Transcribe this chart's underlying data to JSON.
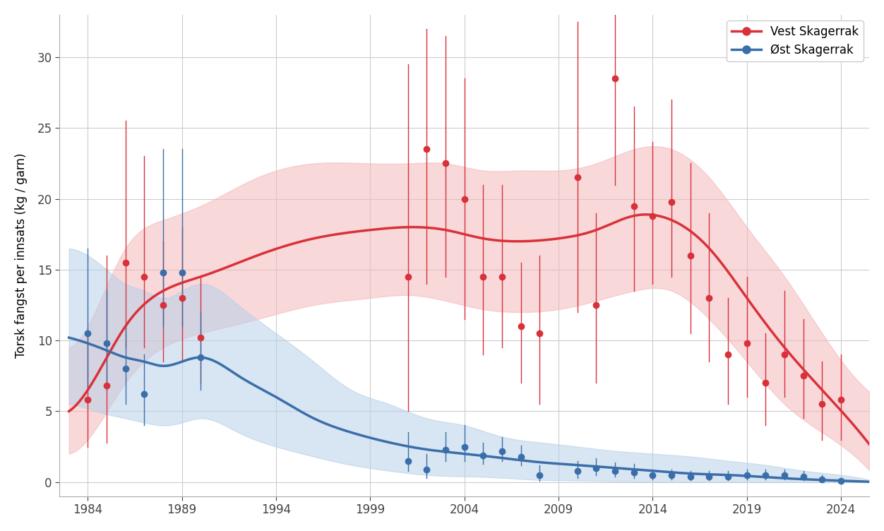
{
  "title": "",
  "ylabel": "Torsk fangst per innsats (kg / garn)",
  "xlabel": "",
  "xlim": [
    1982.5,
    2025.5
  ],
  "ylim": [
    -1,
    33
  ],
  "yticks": [
    0,
    5,
    10,
    15,
    20,
    25,
    30
  ],
  "xticks": [
    1984,
    1989,
    1994,
    1999,
    2004,
    2009,
    2014,
    2019,
    2024
  ],
  "background_color": "#ffffff",
  "grid_color": "#cccccc",
  "vest_color": "#d9313a",
  "vest_fill_color": "#f4b8bb",
  "oest_color": "#3a6eaa",
  "oest_fill_color": "#b8d0e8",
  "vest_points": [
    {
      "year": 1984,
      "val": 5.8,
      "lo": 2.5,
      "hi": 10.5
    },
    {
      "year": 1985,
      "val": 6.8,
      "lo": 2.8,
      "hi": 16.0
    },
    {
      "year": 1986,
      "val": 15.5,
      "lo": 9.5,
      "hi": 25.5
    },
    {
      "year": 1987,
      "val": 14.5,
      "lo": 9.5,
      "hi": 23.0
    },
    {
      "year": 1988,
      "val": 12.5,
      "lo": 8.5,
      "hi": 17.0
    },
    {
      "year": 1989,
      "val": 13.0,
      "lo": 8.5,
      "hi": 18.0
    },
    {
      "year": 1990,
      "val": 10.2,
      "lo": 7.0,
      "hi": 14.5
    },
    {
      "year": 2001,
      "val": 14.5,
      "lo": 5.0,
      "hi": 29.5
    },
    {
      "year": 2002,
      "val": 23.5,
      "lo": 14.0,
      "hi": 32.0
    },
    {
      "year": 2003,
      "val": 22.5,
      "lo": 14.5,
      "hi": 31.5
    },
    {
      "year": 2004,
      "val": 20.0,
      "lo": 11.5,
      "hi": 28.5
    },
    {
      "year": 2005,
      "val": 14.5,
      "lo": 9.0,
      "hi": 21.0
    },
    {
      "year": 2006,
      "val": 14.5,
      "lo": 9.5,
      "hi": 21.0
    },
    {
      "year": 2007,
      "val": 11.0,
      "lo": 7.0,
      "hi": 15.5
    },
    {
      "year": 2008,
      "val": 10.5,
      "lo": 5.5,
      "hi": 16.0
    },
    {
      "year": 2010,
      "val": 21.5,
      "lo": 12.0,
      "hi": 32.5
    },
    {
      "year": 2011,
      "val": 12.5,
      "lo": 7.0,
      "hi": 19.0
    },
    {
      "year": 2012,
      "val": 28.5,
      "lo": 21.0,
      "hi": 33.0
    },
    {
      "year": 2013,
      "val": 19.5,
      "lo": 13.5,
      "hi": 26.5
    },
    {
      "year": 2014,
      "val": 18.8,
      "lo": 14.0,
      "hi": 24.0
    },
    {
      "year": 2015,
      "val": 19.8,
      "lo": 14.5,
      "hi": 27.0
    },
    {
      "year": 2016,
      "val": 16.0,
      "lo": 10.5,
      "hi": 22.5
    },
    {
      "year": 2017,
      "val": 13.0,
      "lo": 8.5,
      "hi": 19.0
    },
    {
      "year": 2018,
      "val": 9.0,
      "lo": 5.5,
      "hi": 13.0
    },
    {
      "year": 2019,
      "val": 9.8,
      "lo": 6.0,
      "hi": 14.5
    },
    {
      "year": 2020,
      "val": 7.0,
      "lo": 4.0,
      "hi": 10.5
    },
    {
      "year": 2021,
      "val": 9.0,
      "lo": 6.0,
      "hi": 13.5
    },
    {
      "year": 2022,
      "val": 7.5,
      "lo": 4.5,
      "hi": 11.5
    },
    {
      "year": 2023,
      "val": 5.5,
      "lo": 3.0,
      "hi": 8.5
    },
    {
      "year": 2024,
      "val": 5.8,
      "lo": 3.0,
      "hi": 9.0
    }
  ],
  "oest_points": [
    {
      "year": 1984,
      "val": 10.5,
      "lo": 6.5,
      "hi": 16.5
    },
    {
      "year": 1985,
      "val": 9.8,
      "lo": 6.5,
      "hi": 13.5
    },
    {
      "year": 1986,
      "val": 8.0,
      "lo": 5.5,
      "hi": 11.0
    },
    {
      "year": 1987,
      "val": 6.2,
      "lo": 4.0,
      "hi": 9.0
    },
    {
      "year": 1988,
      "val": 14.8,
      "lo": 11.0,
      "hi": 23.5
    },
    {
      "year": 1989,
      "val": 14.8,
      "lo": 11.0,
      "hi": 23.5
    },
    {
      "year": 1990,
      "val": 8.8,
      "lo": 6.5,
      "hi": 12.0
    },
    {
      "year": 2001,
      "val": 1.5,
      "lo": 0.8,
      "hi": 3.5
    },
    {
      "year": 2002,
      "val": 0.9,
      "lo": 0.3,
      "hi": 2.0
    },
    {
      "year": 2003,
      "val": 2.3,
      "lo": 1.5,
      "hi": 3.5
    },
    {
      "year": 2004,
      "val": 2.5,
      "lo": 1.5,
      "hi": 4.0
    },
    {
      "year": 2005,
      "val": 1.9,
      "lo": 1.3,
      "hi": 2.8
    },
    {
      "year": 2006,
      "val": 2.2,
      "lo": 1.5,
      "hi": 3.2
    },
    {
      "year": 2007,
      "val": 1.8,
      "lo": 1.2,
      "hi": 2.6
    },
    {
      "year": 2008,
      "val": 0.5,
      "lo": 0.1,
      "hi": 1.2
    },
    {
      "year": 2010,
      "val": 0.8,
      "lo": 0.3,
      "hi": 1.5
    },
    {
      "year": 2011,
      "val": 1.0,
      "lo": 0.5,
      "hi": 1.7
    },
    {
      "year": 2012,
      "val": 0.8,
      "lo": 0.4,
      "hi": 1.4
    },
    {
      "year": 2013,
      "val": 0.7,
      "lo": 0.3,
      "hi": 1.3
    },
    {
      "year": 2014,
      "val": 0.5,
      "lo": 0.2,
      "hi": 0.9
    },
    {
      "year": 2015,
      "val": 0.5,
      "lo": 0.2,
      "hi": 0.9
    },
    {
      "year": 2016,
      "val": 0.4,
      "lo": 0.15,
      "hi": 0.8
    },
    {
      "year": 2017,
      "val": 0.4,
      "lo": 0.15,
      "hi": 0.8
    },
    {
      "year": 2018,
      "val": 0.4,
      "lo": 0.15,
      "hi": 0.8
    },
    {
      "year": 2019,
      "val": 0.5,
      "lo": 0.2,
      "hi": 0.9
    },
    {
      "year": 2020,
      "val": 0.5,
      "lo": 0.2,
      "hi": 0.9
    },
    {
      "year": 2021,
      "val": 0.5,
      "lo": 0.2,
      "hi": 0.9
    },
    {
      "year": 2022,
      "val": 0.4,
      "lo": 0.15,
      "hi": 0.8
    },
    {
      "year": 2023,
      "val": 0.2,
      "lo": 0.05,
      "hi": 0.5
    },
    {
      "year": 2024,
      "val": 0.1,
      "lo": 0.0,
      "hi": 0.3
    }
  ],
  "vest_trend_knots": [
    [
      1983,
      5.0
    ],
    [
      1984,
      6.5
    ],
    [
      1986,
      11.0
    ],
    [
      1988,
      13.5
    ],
    [
      1990,
      14.5
    ],
    [
      1993,
      16.0
    ],
    [
      1996,
      17.2
    ],
    [
      1999,
      17.8
    ],
    [
      2001,
      18.0
    ],
    [
      2003,
      17.8
    ],
    [
      2005,
      17.2
    ],
    [
      2007,
      17.0
    ],
    [
      2009,
      17.2
    ],
    [
      2011,
      17.8
    ],
    [
      2013,
      18.8
    ],
    [
      2015,
      18.5
    ],
    [
      2017,
      16.5
    ],
    [
      2019,
      13.0
    ],
    [
      2021,
      9.5
    ],
    [
      2023,
      6.5
    ],
    [
      2025,
      3.5
    ]
  ],
  "vest_trend_lo_knots": [
    [
      1983,
      2.0
    ],
    [
      1984,
      3.0
    ],
    [
      1986,
      7.0
    ],
    [
      1988,
      9.5
    ],
    [
      1990,
      10.5
    ],
    [
      1993,
      11.5
    ],
    [
      1996,
      12.5
    ],
    [
      1999,
      13.0
    ],
    [
      2001,
      13.2
    ],
    [
      2003,
      12.8
    ],
    [
      2005,
      12.2
    ],
    [
      2007,
      12.0
    ],
    [
      2009,
      12.2
    ],
    [
      2011,
      12.8
    ],
    [
      2013,
      13.5
    ],
    [
      2015,
      13.5
    ],
    [
      2017,
      11.5
    ],
    [
      2019,
      8.5
    ],
    [
      2021,
      5.5
    ],
    [
      2023,
      3.5
    ],
    [
      2025,
      1.5
    ]
  ],
  "vest_trend_hi_knots": [
    [
      1983,
      9.5
    ],
    [
      1984,
      11.0
    ],
    [
      1986,
      16.5
    ],
    [
      1988,
      18.5
    ],
    [
      1990,
      19.5
    ],
    [
      1993,
      21.5
    ],
    [
      1996,
      22.5
    ],
    [
      1999,
      22.5
    ],
    [
      2001,
      22.5
    ],
    [
      2003,
      22.5
    ],
    [
      2005,
      22.0
    ],
    [
      2007,
      22.0
    ],
    [
      2009,
      22.0
    ],
    [
      2011,
      22.5
    ],
    [
      2013,
      23.5
    ],
    [
      2015,
      23.5
    ],
    [
      2017,
      21.5
    ],
    [
      2019,
      18.0
    ],
    [
      2021,
      14.5
    ],
    [
      2023,
      10.5
    ],
    [
      2025,
      7.0
    ]
  ],
  "oest_trend_knots": [
    [
      1983,
      10.2
    ],
    [
      1984,
      9.8
    ],
    [
      1985,
      9.3
    ],
    [
      1986,
      8.8
    ],
    [
      1987,
      8.5
    ],
    [
      1988,
      8.2
    ],
    [
      1989,
      8.5
    ],
    [
      1990,
      8.8
    ],
    [
      1992,
      7.5
    ],
    [
      1994,
      6.0
    ],
    [
      1996,
      4.5
    ],
    [
      1998,
      3.5
    ],
    [
      2000,
      2.8
    ],
    [
      2002,
      2.3
    ],
    [
      2004,
      2.0
    ],
    [
      2006,
      1.7
    ],
    [
      2008,
      1.4
    ],
    [
      2010,
      1.2
    ],
    [
      2012,
      1.0
    ],
    [
      2014,
      0.8
    ],
    [
      2016,
      0.6
    ],
    [
      2018,
      0.5
    ],
    [
      2020,
      0.35
    ],
    [
      2022,
      0.2
    ],
    [
      2024,
      0.1
    ],
    [
      2025,
      0.05
    ]
  ],
  "oest_trend_lo_knots": [
    [
      1983,
      5.5
    ],
    [
      1984,
      5.2
    ],
    [
      1985,
      4.8
    ],
    [
      1986,
      4.5
    ],
    [
      1987,
      4.2
    ],
    [
      1988,
      4.0
    ],
    [
      1989,
      4.2
    ],
    [
      1990,
      4.5
    ],
    [
      1992,
      3.5
    ],
    [
      1994,
      2.5
    ],
    [
      1996,
      1.8
    ],
    [
      1998,
      1.2
    ],
    [
      2000,
      0.8
    ],
    [
      2002,
      0.5
    ],
    [
      2004,
      0.4
    ],
    [
      2006,
      0.3
    ],
    [
      2008,
      0.15
    ],
    [
      2010,
      0.1
    ],
    [
      2012,
      0.05
    ],
    [
      2014,
      0.02
    ],
    [
      2016,
      0.01
    ],
    [
      2018,
      0.0
    ],
    [
      2020,
      0.0
    ],
    [
      2022,
      0.0
    ],
    [
      2024,
      0.0
    ],
    [
      2025,
      0.0
    ]
  ],
  "oest_trend_hi_knots": [
    [
      1983,
      16.5
    ],
    [
      1984,
      16.0
    ],
    [
      1985,
      15.0
    ],
    [
      1986,
      14.0
    ],
    [
      1987,
      13.5
    ],
    [
      1988,
      13.0
    ],
    [
      1989,
      13.5
    ],
    [
      1990,
      14.0
    ],
    [
      1992,
      12.5
    ],
    [
      1994,
      10.5
    ],
    [
      1996,
      8.5
    ],
    [
      1998,
      6.5
    ],
    [
      2000,
      5.5
    ],
    [
      2002,
      4.5
    ],
    [
      2004,
      4.0
    ],
    [
      2006,
      3.2
    ],
    [
      2008,
      2.8
    ],
    [
      2010,
      2.5
    ],
    [
      2012,
      2.2
    ],
    [
      2014,
      2.0
    ],
    [
      2016,
      1.8
    ],
    [
      2018,
      1.5
    ],
    [
      2020,
      1.2
    ],
    [
      2022,
      0.8
    ],
    [
      2024,
      0.5
    ],
    [
      2025,
      0.3
    ]
  ],
  "legend_labels": [
    "Vest Skagerrak",
    "Øst Skagerrak"
  ],
  "marker_size": 6,
  "linewidth": 2.5
}
